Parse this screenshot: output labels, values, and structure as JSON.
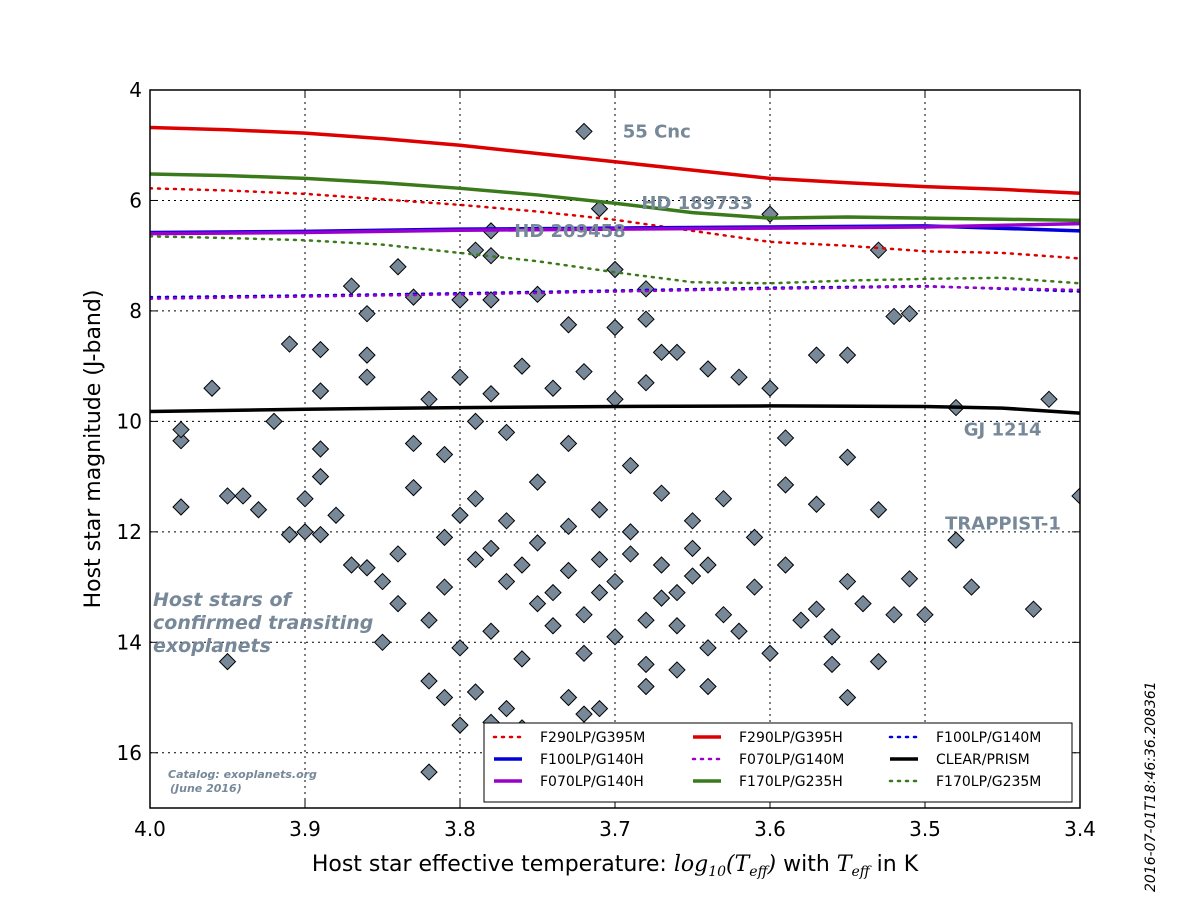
{
  "chart_data": {
    "type": "scatter",
    "xlabel_prefix": "Host star effective temperature: ",
    "xlabel_math": "log10(Teff)",
    "xlabel_mid": " with ",
    "xlabel_math2": "Teff",
    "xlabel_suffix": " in K",
    "ylabel": "Host star magnitude (J-band)",
    "xlim": [
      4.0,
      3.4
    ],
    "ylim": [
      17,
      4
    ],
    "y_inverted": true,
    "grid": true,
    "xticks": [
      "4.0",
      "3.9",
      "3.8",
      "3.7",
      "3.6",
      "3.5",
      "3.4"
    ],
    "xtick_values": [
      4.0,
      3.9,
      3.8,
      3.7,
      3.6,
      3.5,
      3.4
    ],
    "yticks": [
      "4",
      "6",
      "8",
      "10",
      "12",
      "14",
      "16"
    ],
    "ytick_values": [
      4,
      6,
      8,
      10,
      12,
      14,
      16
    ],
    "marker_color": "#778899",
    "scatter_note": "Host stars of confirmed transiting exoplanets",
    "host_label_lines": [
      "Host stars of",
      "confirmed transiting",
      "exoplanets"
    ],
    "catalog_lines": [
      "Catalog: exoplanets.org",
      "(June 2016)"
    ],
    "timestamp": "2016-07-01T18:46:36.208361",
    "points": [
      [
        3.72,
        4.75
      ],
      [
        3.71,
        6.15
      ],
      [
        3.6,
        6.25
      ],
      [
        3.78,
        6.55
      ],
      [
        3.7,
        7.25
      ],
      [
        3.78,
        7.0
      ],
      [
        3.79,
        6.9
      ],
      [
        3.84,
        7.2
      ],
      [
        3.83,
        7.75
      ],
      [
        3.87,
        7.55
      ],
      [
        3.86,
        8.05
      ],
      [
        3.8,
        7.8
      ],
      [
        3.78,
        7.8
      ],
      [
        3.75,
        7.7
      ],
      [
        3.68,
        7.6
      ],
      [
        3.53,
        6.9
      ],
      [
        3.51,
        8.05
      ],
      [
        3.52,
        8.1
      ],
      [
        3.68,
        8.15
      ],
      [
        3.73,
        8.25
      ],
      [
        3.7,
        8.3
      ],
      [
        3.91,
        8.6
      ],
      [
        3.89,
        8.7
      ],
      [
        3.86,
        8.8
      ],
      [
        3.67,
        8.75
      ],
      [
        3.66,
        8.75
      ],
      [
        3.64,
        9.05
      ],
      [
        3.62,
        9.2
      ],
      [
        3.57,
        8.8
      ],
      [
        3.55,
        8.8
      ],
      [
        3.96,
        9.4
      ],
      [
        3.89,
        9.45
      ],
      [
        3.86,
        9.2
      ],
      [
        3.6,
        9.4
      ],
      [
        3.92,
        10.0
      ],
      [
        3.98,
        10.35
      ],
      [
        3.98,
        10.15
      ],
      [
        3.89,
        10.5
      ],
      [
        3.59,
        10.3
      ],
      [
        3.55,
        10.65
      ],
      [
        3.48,
        9.75
      ],
      [
        3.42,
        9.6
      ],
      [
        3.98,
        11.55
      ],
      [
        3.95,
        11.35
      ],
      [
        3.94,
        11.35
      ],
      [
        3.93,
        11.6
      ],
      [
        3.9,
        11.4
      ],
      [
        3.89,
        11.0
      ],
      [
        3.88,
        11.7
      ],
      [
        3.9,
        12.0
      ],
      [
        3.91,
        12.05
      ],
      [
        3.89,
        12.05
      ],
      [
        3.87,
        12.6
      ],
      [
        3.86,
        12.65
      ],
      [
        3.59,
        11.15
      ],
      [
        3.57,
        11.5
      ],
      [
        3.53,
        11.6
      ],
      [
        3.48,
        12.15
      ],
      [
        3.43,
        13.4
      ],
      [
        3.4,
        11.35
      ],
      [
        3.5,
        13.5
      ],
      [
        3.51,
        12.85
      ],
      [
        3.95,
        14.35
      ],
      [
        3.85,
        14.0
      ],
      [
        3.82,
        14.7
      ],
      [
        3.81,
        15.0
      ],
      [
        3.79,
        14.9
      ],
      [
        3.77,
        15.2
      ],
      [
        3.73,
        15.0
      ],
      [
        3.72,
        15.3
      ],
      [
        3.71,
        15.2
      ],
      [
        3.68,
        14.8
      ],
      [
        3.66,
        14.5
      ],
      [
        3.64,
        14.8
      ],
      [
        3.55,
        15.0
      ],
      [
        3.56,
        14.4
      ],
      [
        3.53,
        14.35
      ],
      [
        3.52,
        13.5
      ],
      [
        3.54,
        13.3
      ],
      [
        3.47,
        13.0
      ],
      [
        3.82,
        16.35
      ],
      [
        3.8,
        15.5
      ],
      [
        3.78,
        15.45
      ],
      [
        3.76,
        15.55
      ],
      [
        3.81,
        13.0
      ],
      [
        3.79,
        12.5
      ],
      [
        3.77,
        12.9
      ],
      [
        3.75,
        13.3
      ],
      [
        3.73,
        12.7
      ],
      [
        3.71,
        13.1
      ],
      [
        3.69,
        12.4
      ],
      [
        3.67,
        13.2
      ],
      [
        3.65,
        12.8
      ],
      [
        3.63,
        13.5
      ],
      [
        3.61,
        13.0
      ],
      [
        3.59,
        12.6
      ],
      [
        3.57,
        13.4
      ],
      [
        3.55,
        12.9
      ],
      [
        3.83,
        11.2
      ],
      [
        3.81,
        10.6
      ],
      [
        3.79,
        11.4
      ],
      [
        3.77,
        10.2
      ],
      [
        3.75,
        11.1
      ],
      [
        3.73,
        10.4
      ],
      [
        3.71,
        11.6
      ],
      [
        3.69,
        10.8
      ],
      [
        3.67,
        11.3
      ],
      [
        3.65,
        11.8
      ],
      [
        3.63,
        11.4
      ],
      [
        3.61,
        12.1
      ],
      [
        3.82,
        9.6
      ],
      [
        3.8,
        9.2
      ],
      [
        3.78,
        9.5
      ],
      [
        3.76,
        9.0
      ],
      [
        3.74,
        9.4
      ],
      [
        3.72,
        9.1
      ],
      [
        3.7,
        9.6
      ],
      [
        3.68,
        9.3
      ],
      [
        3.84,
        12.4
      ],
      [
        3.82,
        13.6
      ],
      [
        3.8,
        14.1
      ],
      [
        3.78,
        13.8
      ],
      [
        3.76,
        14.3
      ],
      [
        3.74,
        13.7
      ],
      [
        3.72,
        14.2
      ],
      [
        3.7,
        13.9
      ],
      [
        3.68,
        14.4
      ],
      [
        3.66,
        13.7
      ],
      [
        3.64,
        14.1
      ],
      [
        3.62,
        13.8
      ],
      [
        3.6,
        14.2
      ],
      [
        3.58,
        13.6
      ],
      [
        3.56,
        13.9
      ],
      [
        3.83,
        10.4
      ],
      [
        3.79,
        10.0
      ],
      [
        3.77,
        11.8
      ],
      [
        3.75,
        12.2
      ],
      [
        3.73,
        11.9
      ],
      [
        3.71,
        12.5
      ],
      [
        3.69,
        12.0
      ],
      [
        3.67,
        12.6
      ],
      [
        3.65,
        12.3
      ],
      [
        3.81,
        12.1
      ],
      [
        3.85,
        12.9
      ],
      [
        3.84,
        13.3
      ],
      [
        3.8,
        11.7
      ],
      [
        3.78,
        12.3
      ],
      [
        3.76,
        12.6
      ],
      [
        3.74,
        13.1
      ],
      [
        3.72,
        13.5
      ],
      [
        3.7,
        12.9
      ],
      [
        3.68,
        13.6
      ],
      [
        3.66,
        13.1
      ],
      [
        3.64,
        12.6
      ]
    ],
    "series": [
      {
        "name": "F290LP/G395M",
        "color": "#dd0000",
        "dash": "dotted",
        "x": [
          4.0,
          3.95,
          3.9,
          3.85,
          3.8,
          3.75,
          3.7,
          3.65,
          3.6,
          3.55,
          3.5,
          3.45,
          3.4
        ],
        "y": [
          5.78,
          5.82,
          5.88,
          5.98,
          6.08,
          6.2,
          6.35,
          6.55,
          6.75,
          6.82,
          6.92,
          6.95,
          7.05
        ]
      },
      {
        "name": "F290LP/G395H",
        "color": "#dd0000",
        "dash": "solid",
        "x": [
          4.0,
          3.95,
          3.9,
          3.85,
          3.8,
          3.75,
          3.7,
          3.65,
          3.6,
          3.55,
          3.5,
          3.45,
          3.4
        ],
        "y": [
          4.68,
          4.72,
          4.78,
          4.88,
          5.0,
          5.15,
          5.3,
          5.45,
          5.6,
          5.68,
          5.75,
          5.8,
          5.87
        ]
      },
      {
        "name": "F100LP/G140M",
        "color": "#0000dd",
        "dash": "dotted",
        "x": [
          4.0,
          3.9,
          3.8,
          3.7,
          3.6,
          3.5,
          3.4
        ],
        "y": [
          7.75,
          7.72,
          7.68,
          7.63,
          7.58,
          7.55,
          7.65
        ]
      },
      {
        "name": "F100LP/G140H",
        "color": "#0000dd",
        "dash": "solid",
        "x": [
          4.0,
          3.9,
          3.8,
          3.7,
          3.6,
          3.5,
          3.4
        ],
        "y": [
          6.58,
          6.56,
          6.52,
          6.5,
          6.48,
          6.46,
          6.55
        ]
      },
      {
        "name": "F070LP/G140M",
        "color": "#9900cc",
        "dash": "dotted",
        "x": [
          4.0,
          3.9,
          3.8,
          3.7,
          3.6,
          3.5,
          3.4
        ],
        "y": [
          7.78,
          7.74,
          7.7,
          7.65,
          7.6,
          7.56,
          7.62
        ]
      },
      {
        "name": "CLEAR/PRISM",
        "color": "#000000",
        "dash": "solid",
        "x": [
          4.0,
          3.9,
          3.8,
          3.7,
          3.6,
          3.5,
          3.45,
          3.4
        ],
        "y": [
          9.82,
          9.78,
          9.75,
          9.73,
          9.72,
          9.73,
          9.76,
          9.85
        ]
      },
      {
        "name": "F070LP/G140H",
        "color": "#9900cc",
        "dash": "solid",
        "x": [
          4.0,
          3.9,
          3.8,
          3.7,
          3.6,
          3.5,
          3.4
        ],
        "y": [
          6.6,
          6.58,
          6.54,
          6.52,
          6.5,
          6.48,
          6.42
        ]
      },
      {
        "name": "F170LP/G235H",
        "color": "#3a7a1a",
        "dash": "solid",
        "x": [
          4.0,
          3.95,
          3.9,
          3.85,
          3.8,
          3.75,
          3.7,
          3.65,
          3.6,
          3.55,
          3.5,
          3.45,
          3.4
        ],
        "y": [
          5.52,
          5.55,
          5.6,
          5.68,
          5.78,
          5.9,
          6.05,
          6.22,
          6.32,
          6.3,
          6.32,
          6.34,
          6.36
        ]
      },
      {
        "name": "F170LP/G235M",
        "color": "#3a7a1a",
        "dash": "dotted",
        "x": [
          4.0,
          3.95,
          3.9,
          3.85,
          3.8,
          3.75,
          3.7,
          3.65,
          3.6,
          3.55,
          3.5,
          3.45,
          3.4
        ],
        "y": [
          6.65,
          6.68,
          6.72,
          6.8,
          6.95,
          7.1,
          7.3,
          7.48,
          7.5,
          7.45,
          7.42,
          7.4,
          7.5
        ]
      }
    ],
    "annotations": [
      {
        "text": "55 Cnc",
        "x": 3.695,
        "y": 4.75
      },
      {
        "text": "HD 189733",
        "x": 3.683,
        "y": 6.05
      },
      {
        "text": "HD 209458",
        "x": 3.765,
        "y": 6.55
      },
      {
        "text": "GJ 1214",
        "x": 3.475,
        "y": 10.15
      },
      {
        "text": "TRAPPIST-1",
        "x": 3.487,
        "y": 11.85
      }
    ],
    "legend_placement": "lower-right",
    "legend_order": [
      0,
      3,
      6,
      1,
      4,
      7,
      2,
      5,
      8
    ]
  }
}
